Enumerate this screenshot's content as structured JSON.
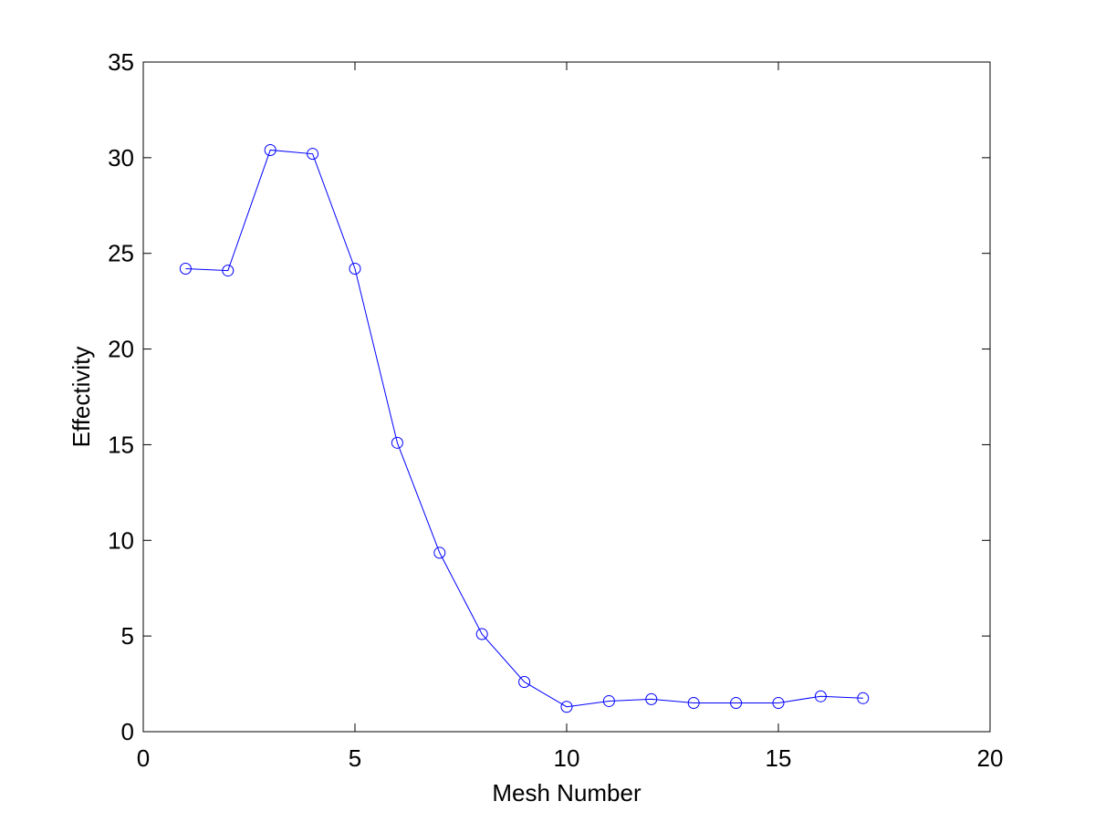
{
  "chart_data": {
    "type": "line",
    "xlabel": "Mesh Number",
    "ylabel": "Effectivity",
    "x": [
      1,
      2,
      3,
      4,
      5,
      6,
      7,
      8,
      9,
      10,
      11,
      12,
      13,
      14,
      15,
      16,
      17
    ],
    "series": [
      {
        "color": "#0000ff",
        "marker": "circle",
        "values": [
          24.2,
          24.1,
          30.4,
          30.2,
          24.2,
          15.1,
          9.35,
          5.1,
          2.6,
          1.3,
          1.6,
          1.7,
          1.5,
          1.5,
          1.5,
          1.85,
          1.75
        ]
      }
    ],
    "xlim": [
      0,
      20
    ],
    "xticks": [
      0,
      5,
      10,
      15,
      20
    ],
    "ylim": [
      0,
      35
    ],
    "yticks": [
      0,
      5,
      10,
      15,
      20,
      25,
      30,
      35
    ],
    "grid": false
  }
}
